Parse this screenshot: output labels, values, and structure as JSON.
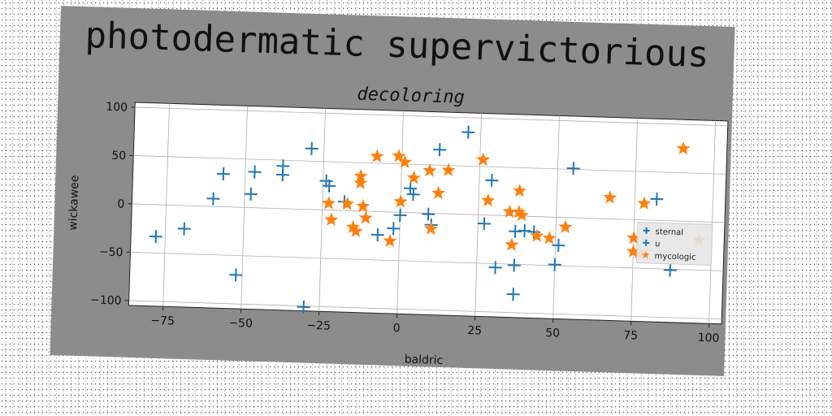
{
  "figure_title": "photodermatic supervictorious",
  "chart_data": {
    "type": "scatter",
    "title": "decoloring",
    "xlabel": "baldric",
    "ylabel": "wickawee",
    "xlim": [
      -86,
      104
    ],
    "ylim": [
      -105,
      105
    ],
    "xticks": [
      -75,
      -50,
      -25,
      0,
      25,
      50,
      75,
      100
    ],
    "yticks": [
      -100,
      -50,
      0,
      50,
      100
    ],
    "grid": true,
    "legend_position": "right",
    "series": [
      {
        "name": "sternal",
        "marker": "plus",
        "color": "#1f77b4",
        "points": [
          [
            -78,
            -33
          ],
          [
            -69,
            -24
          ],
          [
            -60,
            8
          ],
          [
            -57,
            34
          ],
          [
            -52,
            -70
          ],
          [
            -48,
            14
          ],
          [
            -47,
            37
          ],
          [
            -38,
            44
          ],
          [
            -38,
            35
          ],
          [
            -29,
            63
          ],
          [
            -30,
            -101
          ],
          [
            -24,
            30
          ],
          [
            -23,
            25
          ],
          [
            -18,
            9
          ],
          [
            -7,
            -24
          ],
          [
            -2,
            -17
          ],
          [
            0,
            -3
          ],
          [
            3,
            25
          ],
          [
            4,
            19
          ],
          [
            9,
            -1
          ],
          [
            10,
            -12
          ],
          [
            12,
            66
          ],
          [
            21,
            85
          ],
          [
            27,
            -9
          ],
          [
            29,
            36
          ],
          [
            31,
            -54
          ],
          [
            37,
            -16
          ],
          [
            37,
            -51
          ],
          [
            37,
            -81
          ],
          [
            40,
            -15
          ],
          [
            43,
            -16
          ],
          [
            50,
            -49
          ],
          [
            51,
            -29
          ],
          [
            55,
            51
          ],
          [
            87,
            -51
          ],
          [
            82,
            22
          ]
        ]
      },
      {
        "name": "mycologic",
        "marker": "star",
        "color": "#ff7f0e",
        "points": [
          [
            -23,
            7
          ],
          [
            -22,
            -10
          ],
          [
            -17,
            7
          ],
          [
            -15,
            -17
          ],
          [
            -14,
            -21
          ],
          [
            -13,
            36
          ],
          [
            -13,
            29
          ],
          [
            -12,
            5
          ],
          [
            -11,
            -7
          ],
          [
            -8,
            57
          ],
          [
            -3,
            -30
          ],
          [
            -1,
            58
          ],
          [
            0,
            11
          ],
          [
            1,
            52
          ],
          [
            4,
            36
          ],
          [
            9,
            44
          ],
          [
            10,
            -16
          ],
          [
            12,
            21
          ],
          [
            15,
            45
          ],
          [
            26,
            57
          ],
          [
            28,
            15
          ],
          [
            35,
            4
          ],
          [
            36,
            -30
          ],
          [
            38,
            26
          ],
          [
            38,
            4
          ],
          [
            39,
            1
          ],
          [
            44,
            -20
          ],
          [
            48,
            -22
          ],
          [
            53,
            -10
          ],
          [
            67,
            22
          ],
          [
            75,
            -33
          ],
          [
            75,
            -19
          ],
          [
            77,
            -34
          ],
          [
            78,
            17
          ],
          [
            90,
            75
          ],
          [
            96,
            -19
          ]
        ]
      },
      {
        "name": "u",
        "marker": "plus",
        "color": "#1f77b4",
        "points": []
      }
    ]
  }
}
